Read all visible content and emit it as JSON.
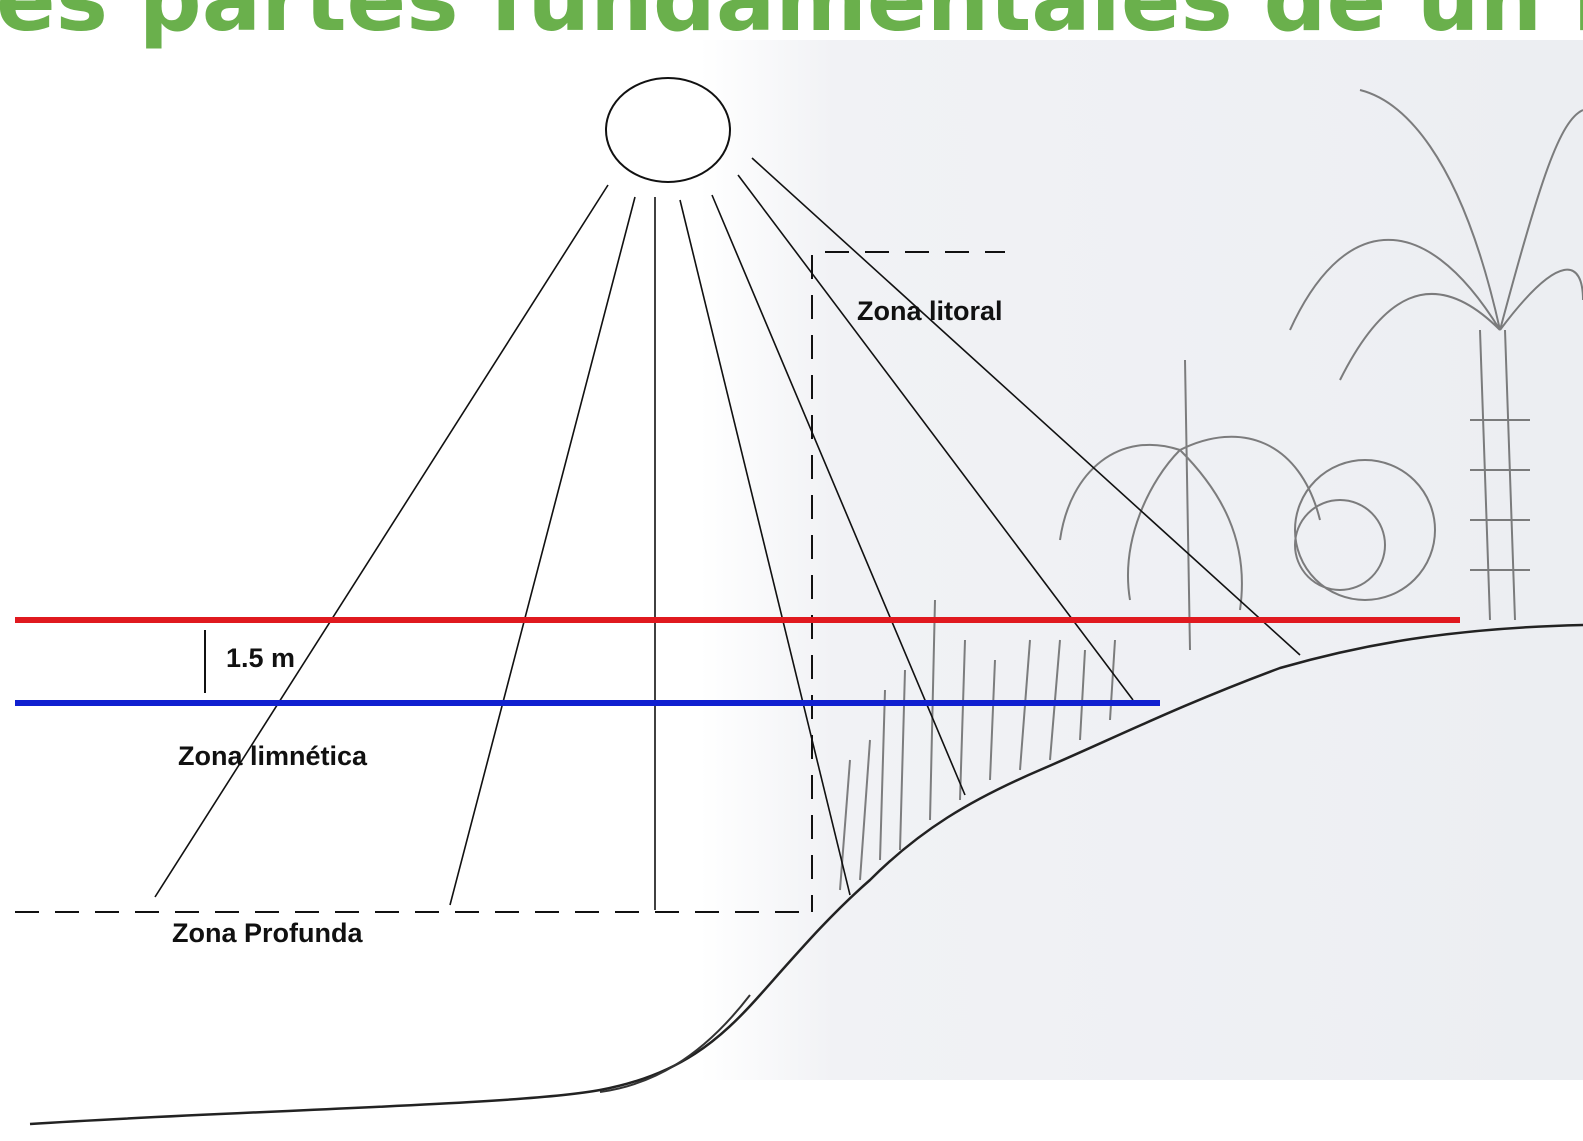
{
  "title": "es partes fundamentales de un la",
  "labels": {
    "litoral": "Zona litoral",
    "depth": "1.5 m",
    "limnetic": "Zona limnética",
    "deep": "Zona Profunda"
  }
}
